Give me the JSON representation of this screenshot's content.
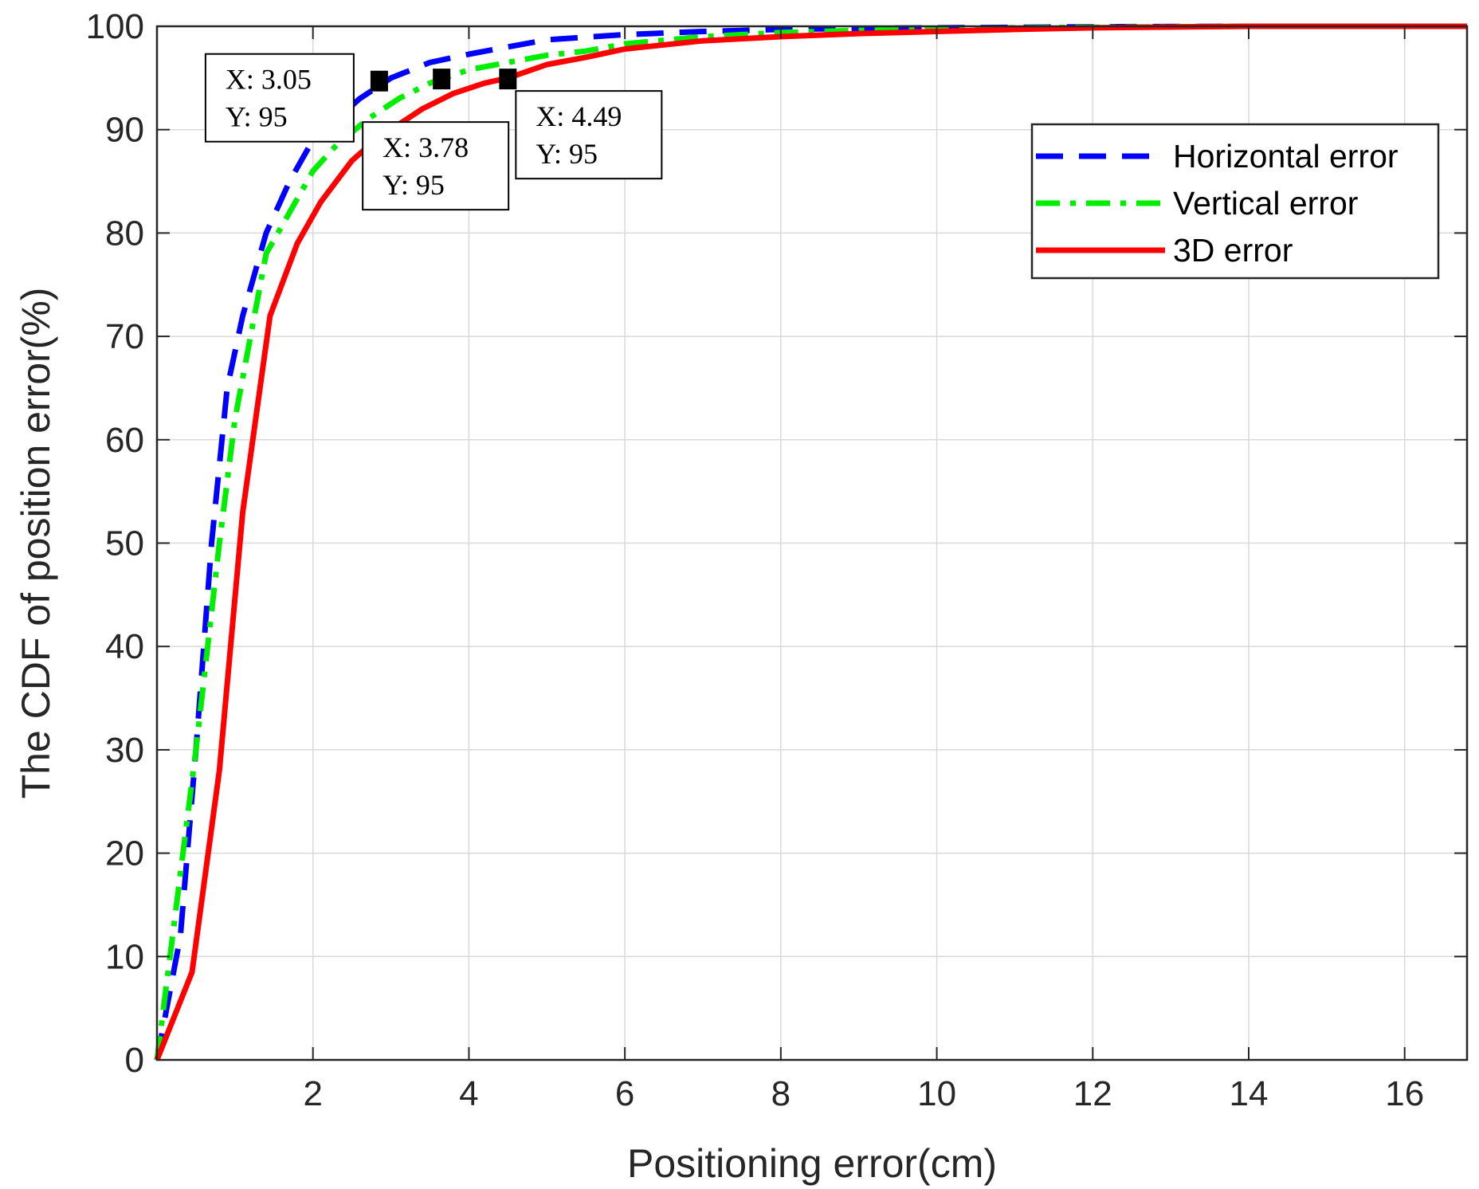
{
  "chart_data": {
    "type": "line",
    "title": "",
    "xlabel": "Positioning error(cm)",
    "ylabel": "The CDF of position error(%)",
    "xlim": [
      0,
      16.8
    ],
    "ylim": [
      0,
      100
    ],
    "xticks": [
      2,
      4,
      6,
      8,
      10,
      12,
      14,
      16
    ],
    "yticks": [
      0,
      10,
      20,
      30,
      40,
      50,
      60,
      70,
      80,
      90,
      100
    ],
    "grid": true,
    "legend_position": "top-right",
    "series": [
      {
        "name": "Horizontal error",
        "color": "#0000ff",
        "style": "dashed",
        "x": [
          0,
          0.1,
          0.3,
          0.5,
          0.7,
          0.9,
          1.1,
          1.4,
          1.7,
          2.0,
          2.3,
          2.6,
          3.0,
          3.5,
          4.0,
          4.5,
          5.0,
          6.0,
          7.0,
          8.0,
          9.0,
          10.0,
          11.0,
          12.0,
          14.0,
          16.8
        ],
        "y": [
          0,
          4,
          12,
          30,
          50,
          65,
          72,
          80,
          85,
          89,
          91,
          93,
          95,
          96.5,
          97.3,
          98,
          98.7,
          99.2,
          99.5,
          99.7,
          99.8,
          99.85,
          99.9,
          99.95,
          100,
          100
        ]
      },
      {
        "name": "Vertical error",
        "color": "#00ee00",
        "style": "dashdot",
        "x": [
          0,
          0.2,
          0.5,
          0.8,
          1.0,
          1.2,
          1.4,
          1.7,
          2.0,
          2.3,
          2.7,
          3.1,
          3.5,
          4.0,
          4.5,
          5.0,
          5.5,
          6.0,
          7.0,
          8.0,
          9.0,
          10.0,
          11.0,
          12.0,
          14.0,
          16.8
        ],
        "y": [
          0,
          12,
          30,
          50,
          62,
          70,
          78,
          82,
          86,
          88.5,
          91,
          93,
          94.5,
          95.8,
          96.5,
          97.2,
          97.6,
          98.3,
          99,
          99.4,
          99.6,
          99.75,
          99.85,
          99.9,
          100,
          100
        ]
      },
      {
        "name": "3D error",
        "color": "#ff0000",
        "style": "solid",
        "x": [
          0,
          0.45,
          0.8,
          1.1,
          1.45,
          1.8,
          2.1,
          2.5,
          2.8,
          3.1,
          3.4,
          3.8,
          4.2,
          4.5,
          5.0,
          5.5,
          6.0,
          6.5,
          7.0,
          8.0,
          9.0,
          10.0,
          11.0,
          12.0,
          14.0,
          16.8
        ],
        "y": [
          0,
          8.5,
          28,
          53,
          72,
          79,
          83,
          87,
          89,
          90.5,
          92,
          93.5,
          94.5,
          95,
          96.3,
          97,
          97.8,
          98.2,
          98.6,
          99,
          99.3,
          99.5,
          99.7,
          99.85,
          100,
          100
        ]
      }
    ],
    "annotations": [
      {
        "x": 2.85,
        "y": 94.7,
        "x_text": "X: 3.05",
        "y_text": "Y: 95"
      },
      {
        "x": 3.65,
        "y": 94.9,
        "x_text": "X: 3.78",
        "y_text": "Y: 95"
      },
      {
        "x": 4.5,
        "y": 94.9,
        "x_text": "X: 4.49",
        "y_text": "Y: 95"
      }
    ]
  }
}
